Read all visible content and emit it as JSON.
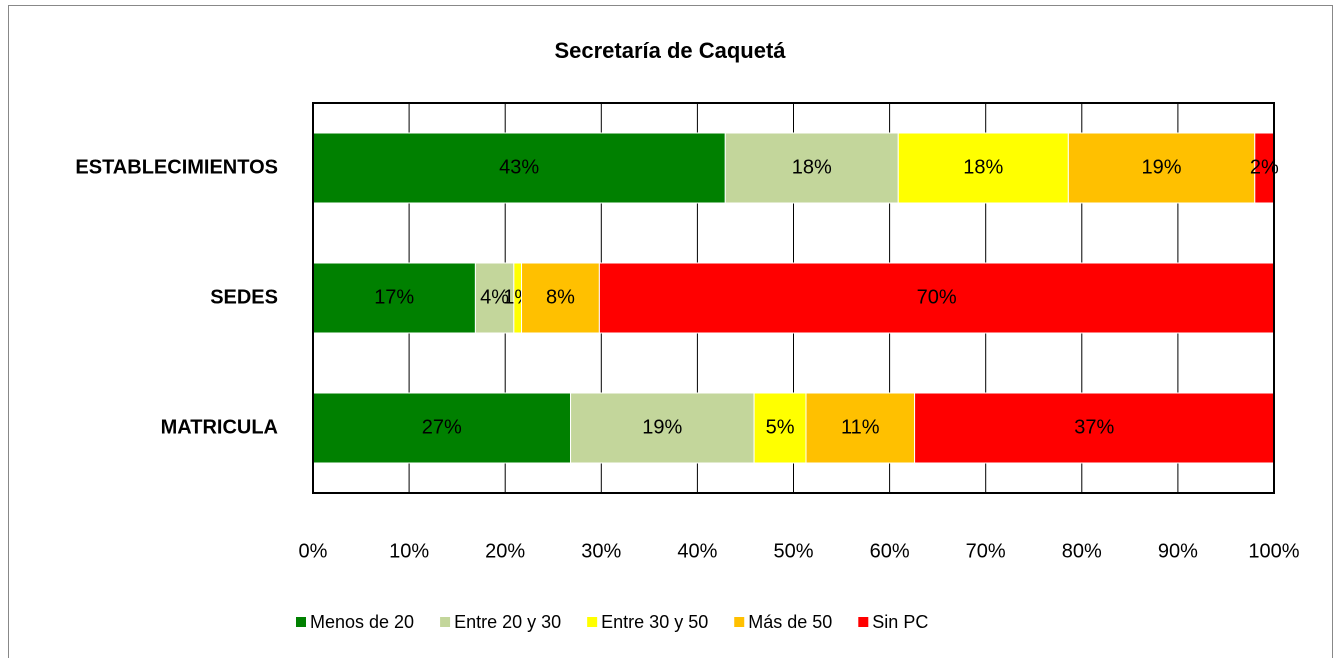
{
  "chart_data": {
    "type": "stacked-barh",
    "title": "Secretaría de Caquetá",
    "categories": [
      "ESTABLECIMIENTOS",
      "SEDES",
      "MATRICULA"
    ],
    "series": [
      {
        "name": "Menos de 20",
        "color": "#008000",
        "values": [
          42.9,
          16.9,
          26.8
        ],
        "value_labels": [
          "43%",
          "17%",
          "27%"
        ]
      },
      {
        "name": "Entre 20 y 30",
        "color": "#c3d69b",
        "values": [
          18.0,
          4.0,
          19.1
        ],
        "value_labels": [
          "18%",
          "4%",
          "19%"
        ]
      },
      {
        "name": "Entre 30 y 50",
        "color": "#ffff00",
        "values": [
          17.7,
          0.8,
          5.4
        ],
        "value_labels": [
          "18%",
          "1%",
          "5%"
        ]
      },
      {
        "name": "Más de 50",
        "color": "#ffc000",
        "values": [
          19.4,
          8.1,
          11.3
        ],
        "value_labels": [
          "19%",
          "8%",
          "11%"
        ]
      },
      {
        "name": "Sin PC",
        "color": "#ff0000",
        "values": [
          2.0,
          70.2,
          37.4
        ],
        "value_labels": [
          "2%",
          "70%",
          "37%"
        ]
      }
    ],
    "xlim": [
      0,
      100
    ],
    "xticks": [
      {
        "value": 0,
        "label": "0%"
      },
      {
        "value": 10,
        "label": "10%"
      },
      {
        "value": 20,
        "label": "20%"
      },
      {
        "value": 30,
        "label": "30%"
      },
      {
        "value": 40,
        "label": "40%"
      },
      {
        "value": 50,
        "label": "50%"
      },
      {
        "value": 60,
        "label": "60%"
      },
      {
        "value": 70,
        "label": "70%"
      },
      {
        "value": 80,
        "label": "80%"
      },
      {
        "value": 90,
        "label": "90%"
      },
      {
        "value": 100,
        "label": "100%"
      }
    ],
    "grid": true,
    "legend": "bottom"
  }
}
